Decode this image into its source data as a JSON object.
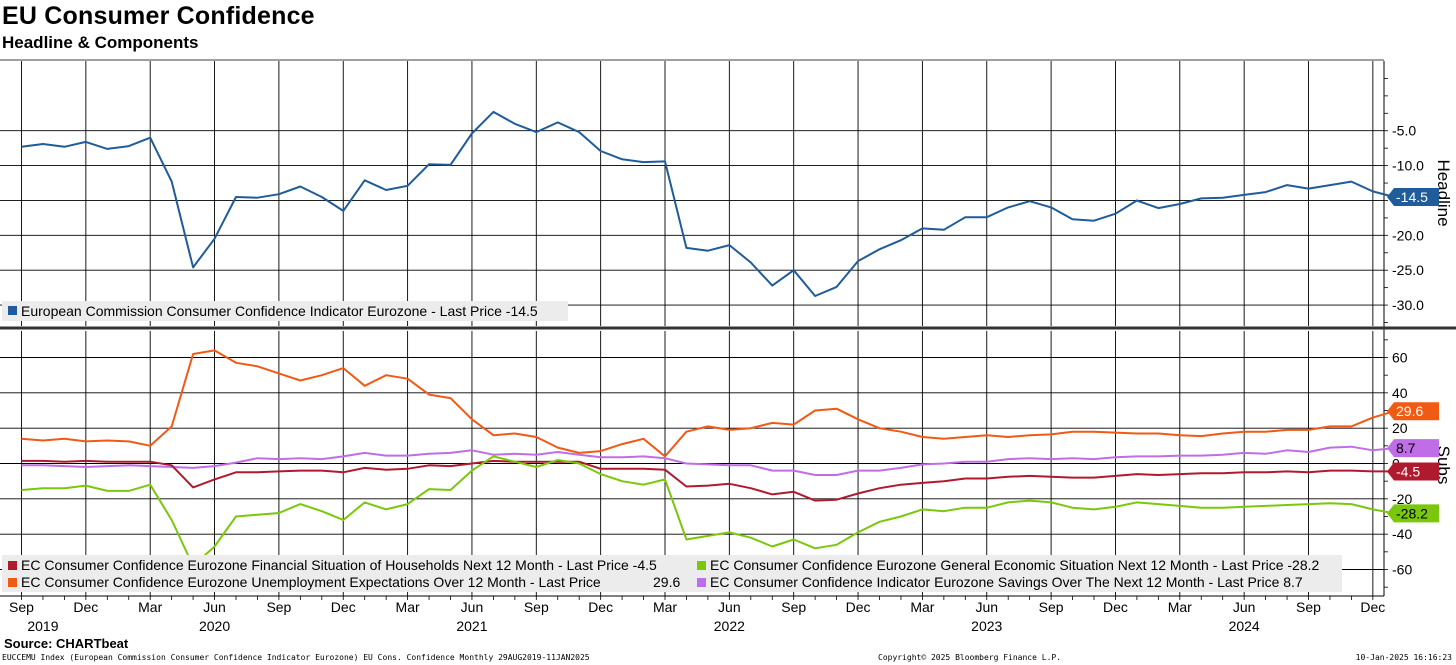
{
  "title": "EU Consumer Confidence",
  "subtitle": "Headline & Components",
  "chart_data": [
    {
      "type": "line",
      "panel": "Headline",
      "ylabel": "Headline",
      "ylim": [
        -33,
        5
      ],
      "yticks": [
        -5.0,
        -10.0,
        -15.0,
        -20.0,
        -25.0,
        -30.0
      ],
      "ytick_labels": [
        "-5.0",
        "-10.0",
        "-15.0",
        "-20.0",
        "-25.0",
        "-30.0"
      ],
      "x_start": "2019-09",
      "series": [
        {
          "name": "European Commission Consumer Confidence Indicator Eurozone",
          "legend": "European Commission Consumer Confidence Indicator Eurozone - Last Price -14.5",
          "last_label": "-14.5",
          "color": "#1f5c99",
          "values": [
            -7.3,
            -6.9,
            -7.3,
            -6.6,
            -7.6,
            -7.2,
            -6.0,
            -12.3,
            -24.6,
            -20.5,
            -14.5,
            -14.6,
            -14.1,
            -13.0,
            -14.5,
            -16.5,
            -12.1,
            -13.5,
            -12.9,
            -9.8,
            -9.9,
            -5.4,
            -2.3,
            -4.0,
            -5.2,
            -3.8,
            -5.2,
            -7.9,
            -9.1,
            -9.5,
            -9.4,
            -21.8,
            -22.2,
            -21.4,
            -23.9,
            -27.2,
            -25.0,
            -28.7,
            -27.4,
            -23.7,
            -22.0,
            -20.7,
            -19.0,
            -19.2,
            -17.4,
            -17.4,
            -16.0,
            -15.1,
            -16.0,
            -17.7,
            -17.9,
            -16.9,
            -15.0,
            -16.1,
            -15.5,
            -14.7,
            -14.6,
            -14.2,
            -13.8,
            -12.8,
            -13.3,
            -12.8,
            -12.3,
            -13.7,
            -14.5
          ]
        }
      ]
    },
    {
      "type": "line",
      "panel": "Subs",
      "ylabel": "Subs",
      "ylim": [
        -75,
        75
      ],
      "yticks": [
        60,
        40,
        20,
        0,
        -20,
        -40,
        -60
      ],
      "ytick_labels": [
        "60",
        "40",
        "20",
        "0",
        "-20",
        "-40",
        "-60"
      ],
      "x_start": "2019-09",
      "series": [
        {
          "name": "EC Consumer Confidence Eurozone Financial Situation of Households Next 12 Month",
          "legend": "EC Consumer Confidence Eurozone Financial Situation of Households Next 12 Month - Last Price -4.5",
          "last_label": "-4.5",
          "color": "#b01a2e",
          "values": [
            1.5,
            1.5,
            1.0,
            1.5,
            1.0,
            1.0,
            1.0,
            -1.0,
            -13.5,
            -9.0,
            -5.0,
            -5.0,
            -4.5,
            -4.0,
            -4.0,
            -5.0,
            -2.5,
            -3.5,
            -3.0,
            -1.0,
            -1.5,
            0.0,
            1.5,
            1.0,
            1.0,
            1.0,
            1.0,
            -3.0,
            -3.0,
            -3.0,
            -3.5,
            -13.0,
            -12.5,
            -11.5,
            -14.0,
            -17.5,
            -16.0,
            -21.0,
            -20.5,
            -17.0,
            -14.0,
            -12.0,
            -11.0,
            -10.0,
            -8.5,
            -8.5,
            -7.5,
            -7.0,
            -7.5,
            -8.0,
            -8.0,
            -7.0,
            -6.0,
            -6.5,
            -6.0,
            -5.5,
            -5.5,
            -5.0,
            -5.0,
            -4.5,
            -5.0,
            -4.0,
            -4.0,
            -4.5,
            -4.5
          ]
        },
        {
          "name": "EC Consumer Confidence Eurozone General Economic Situation Next 12 Month",
          "legend": "EC Consumer Confidence Eurozone General Economic Situation Next 12 Month - Last Price -28.2",
          "last_label": "-28.2",
          "color": "#7ac70c",
          "values": [
            -15.0,
            -14.0,
            -14.0,
            -12.5,
            -15.5,
            -15.5,
            -12.0,
            -32.0,
            -58.0,
            -47.0,
            -30.0,
            -29.0,
            -28.0,
            -23.0,
            -27.0,
            -32.0,
            -22.0,
            -26.0,
            -23.0,
            -14.5,
            -15.0,
            -4.0,
            4.0,
            1.0,
            -2.0,
            2.0,
            0.0,
            -6.0,
            -10.0,
            -12.0,
            -9.0,
            -43.0,
            -41.0,
            -39.0,
            -42.0,
            -47.0,
            -43.0,
            -48.0,
            -46.0,
            -39.0,
            -33.0,
            -30.0,
            -26.0,
            -27.0,
            -25.0,
            -25.0,
            -22.0,
            -21.0,
            -22.0,
            -25.0,
            -26.0,
            -24.5,
            -22.0,
            -23.0,
            -24.0,
            -25.0,
            -25.0,
            -24.5,
            -24.0,
            -23.5,
            -23.0,
            -22.5,
            -23.0,
            -26.0,
            -28.2
          ]
        },
        {
          "name": "EC Consumer Confidence Eurozone Unemployment Expectations Over 12 Month",
          "legend": "EC Consumer Confidence Eurozone Unemployment Expectations Over 12 Month - Last Price",
          "legend_value": "29.6",
          "last_label": "29.6",
          "color": "#f05a14",
          "values": [
            14.0,
            13.0,
            14.0,
            12.5,
            13.0,
            12.5,
            10.0,
            21.0,
            62.0,
            64.0,
            57.0,
            55.0,
            51.0,
            47.0,
            50.0,
            54.0,
            44.0,
            50.0,
            48.0,
            39.0,
            37.0,
            25.0,
            16.0,
            17.0,
            15.0,
            9.0,
            6.0,
            7.0,
            11.0,
            14.0,
            4.0,
            18.0,
            21.0,
            19.0,
            20.0,
            23.0,
            22.0,
            30.0,
            31.0,
            25.0,
            20.0,
            18.0,
            15.0,
            14.0,
            15.0,
            16.0,
            15.0,
            16.0,
            16.5,
            18.0,
            18.0,
            17.5,
            17.0,
            17.0,
            16.0,
            15.5,
            17.0,
            18.0,
            18.0,
            19.0,
            19.0,
            21.0,
            21.0,
            26.0,
            29.6
          ]
        },
        {
          "name": "EC Consumer Confidence Indicator Eurozone Savings Over The Next 12 Month",
          "legend": "EC Consumer Confidence Indicator Eurozone Savings Over The Next 12 Month - Last Price 8.7",
          "last_label": "8.7",
          "color": "#c06ee8",
          "values": [
            -1.0,
            -1.0,
            -1.5,
            -2.0,
            -1.5,
            -1.0,
            -1.5,
            -2.0,
            -2.5,
            -1.5,
            0.5,
            3.0,
            2.5,
            3.0,
            2.5,
            4.0,
            6.0,
            4.5,
            4.5,
            5.5,
            6.0,
            7.5,
            5.0,
            5.5,
            5.0,
            6.5,
            5.0,
            3.5,
            3.5,
            4.0,
            3.0,
            0.0,
            -0.5,
            -1.0,
            -1.0,
            -4.0,
            -4.0,
            -6.5,
            -6.5,
            -4.0,
            -4.0,
            -2.5,
            -0.5,
            0.0,
            1.0,
            1.0,
            2.5,
            3.0,
            2.5,
            3.0,
            2.5,
            3.5,
            4.0,
            4.0,
            4.5,
            4.5,
            5.0,
            6.0,
            5.5,
            7.5,
            6.5,
            9.0,
            9.5,
            7.5,
            8.7
          ]
        }
      ]
    }
  ],
  "x_axis": {
    "months": [
      {
        "label": "Sep",
        "index": 0
      },
      {
        "label": "Dec",
        "index": 3
      },
      {
        "label": "Mar",
        "index": 6
      },
      {
        "label": "Jun",
        "index": 9
      },
      {
        "label": "Sep",
        "index": 12
      },
      {
        "label": "Dec",
        "index": 15
      },
      {
        "label": "Mar",
        "index": 18
      },
      {
        "label": "Jun",
        "index": 21
      },
      {
        "label": "Sep",
        "index": 24
      },
      {
        "label": "Dec",
        "index": 27
      },
      {
        "label": "Mar",
        "index": 30
      },
      {
        "label": "Jun",
        "index": 33
      },
      {
        "label": "Sep",
        "index": 36
      },
      {
        "label": "Dec",
        "index": 39
      },
      {
        "label": "Mar",
        "index": 42
      },
      {
        "label": "Jun",
        "index": 45
      },
      {
        "label": "Sep",
        "index": 48
      },
      {
        "label": "Dec",
        "index": 51
      },
      {
        "label": "Mar",
        "index": 54
      },
      {
        "label": "Jun",
        "index": 57
      },
      {
        "label": "Sep",
        "index": 60
      },
      {
        "label": "Dec",
        "index": 63
      }
    ],
    "years": [
      {
        "label": "2019",
        "index": 1
      },
      {
        "label": "2020",
        "index": 9
      },
      {
        "label": "2021",
        "index": 21
      },
      {
        "label": "2022",
        "index": 33
      },
      {
        "label": "2023",
        "index": 45
      },
      {
        "label": "2024",
        "index": 57
      }
    ]
  },
  "footer": {
    "source": "Source: CHARTbeat",
    "left": "EUCCEMU Index (European Commission Consumer Confidence Indicator Eurozone) EU Cons. Confidence  Monthly 29AUG2019-11JAN2025",
    "center": "Copyright© 2025 Bloomberg Finance L.P.",
    "right": "10-Jan-2025 16:16:23"
  }
}
